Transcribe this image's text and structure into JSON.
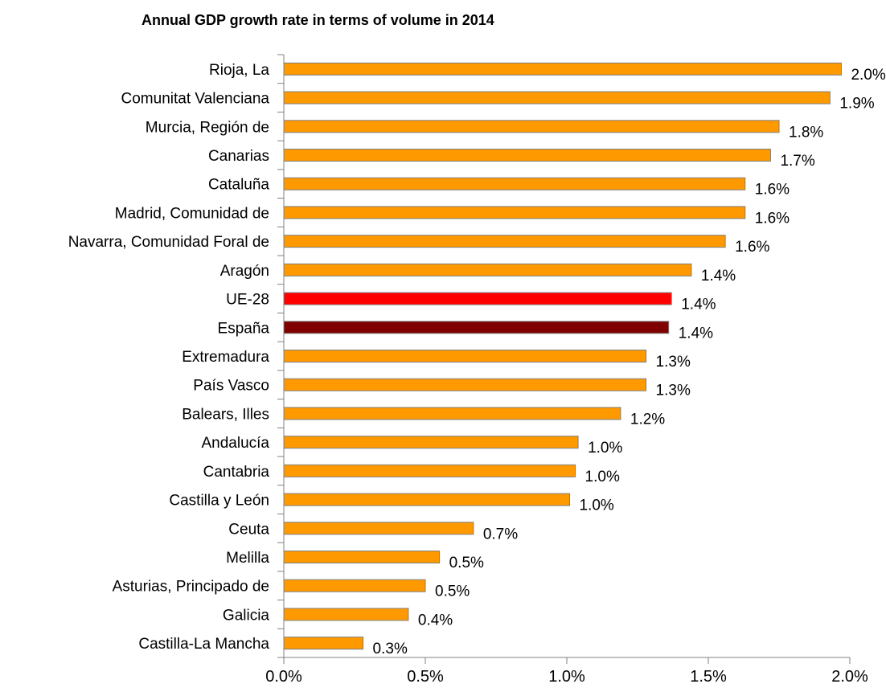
{
  "chart_data": {
    "type": "bar",
    "orientation": "horizontal",
    "title": "Annual GDP growth rate in terms of volume in 2014",
    "xlabel": "",
    "ylabel": "",
    "xlim": [
      0,
      0.02
    ],
    "x_ticks": [
      "0.0%",
      "0.5%",
      "1.0%",
      "1.5%",
      "2.0%"
    ],
    "grid": false,
    "legend": "none",
    "categories": [
      "Rioja, La",
      "Comunitat Valenciana",
      "Murcia, Región de",
      "Canarias",
      "Cataluña",
      "Madrid, Comunidad de",
      "Navarra, Comunidad Foral de",
      "Aragón",
      "UE-28",
      "España",
      "Extremadura",
      "País Vasco",
      "Balears, Illes",
      "Andalucía",
      "Cantabria",
      "Castilla y León",
      "Ceuta ",
      "Melilla",
      "Asturias, Principado de",
      "Galicia",
      "Castilla-La Mancha"
    ],
    "values": [
      0.0197,
      0.0193,
      0.0175,
      0.0172,
      0.0163,
      0.0163,
      0.0156,
      0.0144,
      0.0137,
      0.0136,
      0.0128,
      0.0128,
      0.0119,
      0.0104,
      0.0103,
      0.0101,
      0.0067,
      0.0055,
      0.005,
      0.0044,
      0.0028
    ],
    "value_labels": [
      "2.0%",
      "1.9%",
      "1.8%",
      "1.7%",
      "1.6%",
      "1.6%",
      "1.6%",
      "1.4%",
      "1.4%",
      "1.4%",
      "1.3%",
      "1.3%",
      "1.2%",
      "1.0%",
      "1.0%",
      "1.0%",
      "0.7%",
      "0.5%",
      "0.5%",
      "0.4%",
      "0.3%"
    ],
    "colors": {
      "default": "#FF9900",
      "UE-28": "#FF0000",
      "España": "#800000",
      "bar_outline": "#7F7F7F",
      "axis": "#808080"
    }
  }
}
